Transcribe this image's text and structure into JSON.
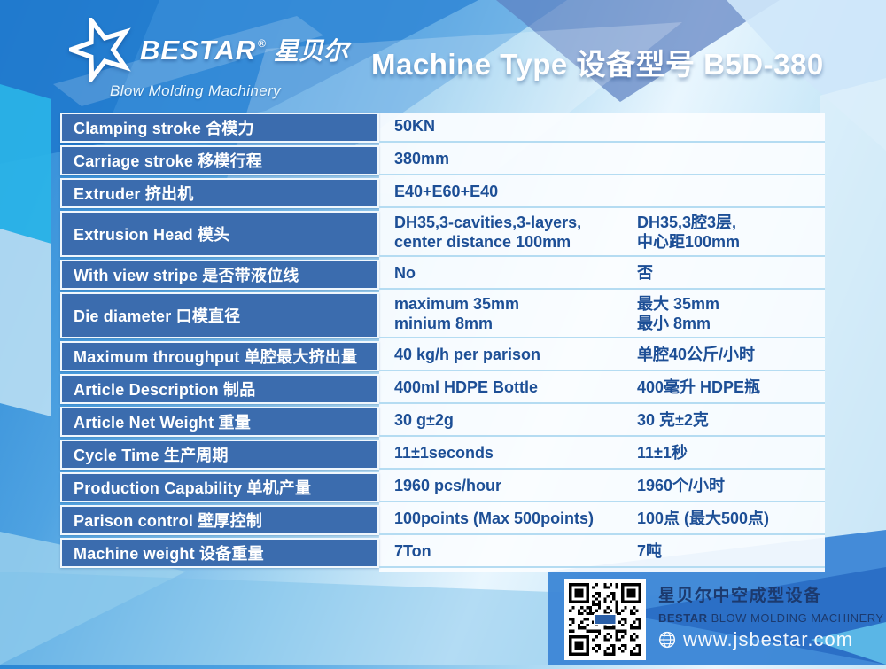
{
  "header": {
    "brand": "BESTAR",
    "registered_mark": "®",
    "brand_zh": "星贝尔",
    "tagline": "Blow Molding Machinery",
    "title": "Machine Type 设备型号 B5D-380"
  },
  "table": {
    "rows": [
      {
        "label": "Clamping stroke 合模力",
        "en": "50KN",
        "zh": ""
      },
      {
        "label": "Carriage stroke 移模行程",
        "en": "380mm",
        "zh": ""
      },
      {
        "label": "Extruder 挤出机",
        "en": "E40+E60+E40",
        "zh": ""
      },
      {
        "label": "Extrusion Head 模头",
        "en": "DH35,3-cavities,3-layers,\ncenter distance 100mm",
        "zh": "DH35,3腔3层,\n中心距100mm"
      },
      {
        "label": "With view stripe 是否带液位线",
        "en": "No",
        "zh": "否"
      },
      {
        "label": "Die diameter 口模直径",
        "en": "maximum 35mm\nminium 8mm",
        "zh": "最大 35mm\n最小 8mm"
      },
      {
        "label": "Maximum throughput 单腔最大挤出量",
        "en": "40 kg/h per parison",
        "zh": "单腔40公斤/小时"
      },
      {
        "label": "Article Description 制品",
        "en": "400ml HDPE Bottle",
        "zh": "400毫升 HDPE瓶"
      },
      {
        "label": "Article Net Weight 重量",
        "en": "30 g±2g",
        "zh": "30 克±2克"
      },
      {
        "label": "Cycle Time 生产周期",
        "en": "11±1seconds",
        "zh": "11±1秒"
      },
      {
        "label": "Production Capability 单机产量",
        "en": "1960 pcs/hour",
        "zh": "1960个/小时"
      },
      {
        "label": "Parison control 壁厚控制",
        "en": "100points (Max 500points)",
        "zh": "100点 (最大500点)"
      },
      {
        "label": "Machine weight 设备重量",
        "en": "7Ton",
        "zh": "7吨"
      }
    ]
  },
  "footer": {
    "company_zh": "星贝尔中空成型设备",
    "brand": "BESTAR",
    "company_en": "BLOW MOLDING MACHINERY",
    "website": "www.jsbestar.com",
    "icons": {
      "globe": "globe-icon",
      "qr": "qr-code"
    }
  },
  "colors": {
    "label_cell": "#3b6cae",
    "value_text": "#1d4f96",
    "panel_bg": "#fbfdff",
    "row_separator": "#b5dcf2",
    "footer_navy": "#1c3a6e",
    "background_blue": "#2a86d4",
    "cyan_accent": "#2ab5e8"
  }
}
